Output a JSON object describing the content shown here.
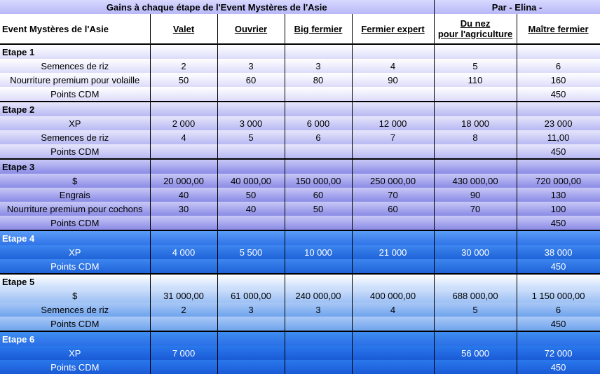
{
  "title": "Gains à chaque étape de l'Event Mystères de l'Asie",
  "author": "Par - Elina -",
  "header": {
    "first": "Event Mystères de l'Asie",
    "cols": [
      "Valet",
      "Ouvrier",
      "Big fermier",
      "Fermier expert",
      "Du nez",
      "pour l'agriculture",
      "Maître fermier"
    ]
  },
  "stages": [
    {
      "label": "Etape 1",
      "rows": [
        {
          "label": "Semences de riz",
          "values": [
            "2",
            "3",
            "3",
            "4",
            "5",
            "6"
          ]
        },
        {
          "label": "Nourriture premium pour volaille",
          "values": [
            "50",
            "60",
            "80",
            "90",
            "110",
            "160"
          ]
        },
        {
          "label": "Points CDM",
          "values": [
            "",
            "",
            "",
            "",
            "",
            "450"
          ]
        }
      ]
    },
    {
      "label": "Etape 2",
      "rows": [
        {
          "label": "XP",
          "values": [
            "2 000",
            "3 000",
            "6 000",
            "12 000",
            "18 000",
            "23 000"
          ]
        },
        {
          "label": "Semences de riz",
          "values": [
            "4",
            "5",
            "6",
            "7",
            "8",
            "11,00"
          ]
        },
        {
          "label": "Points CDM",
          "values": [
            "",
            "",
            "",
            "",
            "",
            "450"
          ]
        }
      ]
    },
    {
      "label": "Etape 3",
      "rows": [
        {
          "label": "$",
          "values": [
            "20 000,00",
            "40 000,00",
            "150 000,00",
            "250 000,00",
            "430 000,00",
            "720 000,00"
          ]
        },
        {
          "label": "Engrais",
          "values": [
            "40",
            "50",
            "60",
            "70",
            "90",
            "130"
          ]
        },
        {
          "label": "Nourriture premium pour cochons",
          "values": [
            "30",
            "40",
            "50",
            "60",
            "70",
            "100"
          ]
        },
        {
          "label": "Points CDM",
          "values": [
            "",
            "",
            "",
            "",
            "",
            "450"
          ]
        }
      ]
    },
    {
      "label": "Etape 4",
      "rows": [
        {
          "label": "XP",
          "values": [
            "4 000",
            "5 500",
            "10 000",
            "21 000",
            "30 000",
            "38 000"
          ]
        },
        {
          "label": "Points CDM",
          "values": [
            "",
            "",
            "",
            "",
            "",
            "450"
          ]
        }
      ]
    },
    {
      "label": "Etape 5",
      "rows": [
        {
          "label": "$",
          "values": [
            "31 000,00",
            "61 000,00",
            "240 000,00",
            "400 000,00",
            "688 000,00",
            "1 150 000,00"
          ]
        },
        {
          "label": "Semences de riz",
          "values": [
            "2",
            "3",
            "3",
            "4",
            "5",
            "6"
          ]
        },
        {
          "label": "Points CDM",
          "values": [
            "",
            "",
            "",
            "",
            "",
            "450"
          ]
        }
      ]
    },
    {
      "label": "Etape 6",
      "rows": [
        {
          "label": "XP",
          "values": [
            "7 000",
            "",
            "",
            "",
            "56 000",
            "72 000"
          ]
        },
        {
          "label": "Points CDM",
          "values": [
            "",
            "",
            "",
            "",
            "",
            "450"
          ]
        }
      ]
    }
  ]
}
